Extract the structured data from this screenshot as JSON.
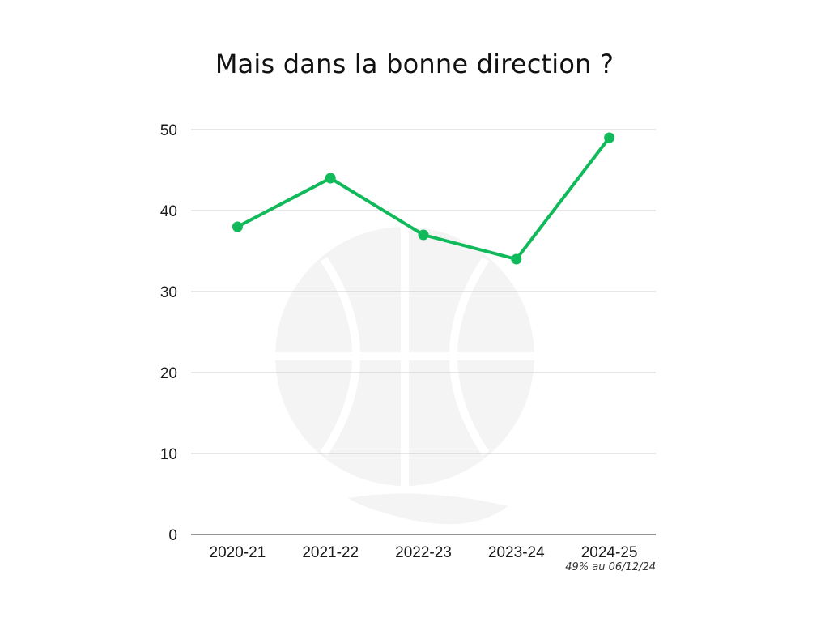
{
  "chart_data": {
    "type": "line",
    "title": "Mais dans la bonne direction ?",
    "xlabel": "",
    "ylabel": "",
    "categories": [
      "2020-21",
      "2021-22",
      "2022-23",
      "2023-24",
      "2024-25"
    ],
    "series": [
      {
        "values": [
          38,
          44,
          37,
          34,
          49
        ]
      }
    ],
    "ylim": [
      0,
      50
    ],
    "yticks": [
      0,
      10,
      20,
      30,
      40,
      50
    ],
    "grid": true,
    "annotations": [
      {
        "category": "2024-25",
        "text": "49% au 06/12/24"
      }
    ],
    "colors": {
      "line": "#10b95a",
      "grid": "#cccccc",
      "axis": "#555555",
      "watermark": "#f4f4f4"
    }
  }
}
